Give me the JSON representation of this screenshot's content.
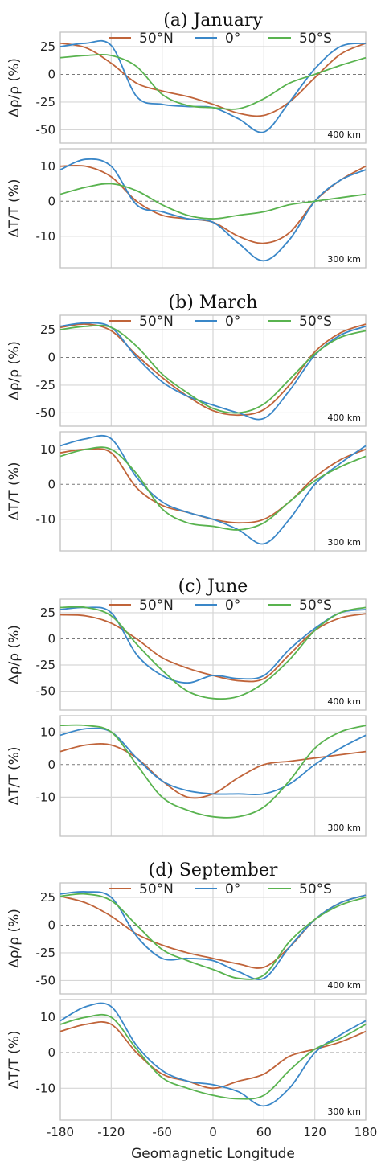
{
  "xlabel": "Geomagnetic Longitude",
  "x_ticks": [
    "-180",
    "-120",
    "-60",
    "0",
    "60",
    "120",
    "180"
  ],
  "colors": {
    "50N": "#c0643a",
    "0": "#3a87c8",
    "50S": "#59b34f"
  },
  "legend": [
    "50°N",
    "0°",
    "50°S"
  ],
  "chart_data": [
    {
      "type": "line",
      "title": "(a) January",
      "ylabel": "Δρ/ρ (%)",
      "annotation": "400 km",
      "xlim": [
        -180,
        180
      ],
      "ylim": [
        -62,
        38
      ],
      "yticks": [
        "25",
        "0",
        "-25",
        "-50"
      ],
      "ytick_values": [
        25,
        0,
        -25,
        -50
      ],
      "x": [
        -180,
        -150,
        -120,
        -90,
        -60,
        -30,
        0,
        30,
        60,
        90,
        120,
        150,
        180
      ],
      "series": [
        {
          "name": "50°N",
          "color": "#c0643a",
          "values": [
            28,
            24,
            10,
            -8,
            -15,
            -20,
            -27,
            -35,
            -37,
            -25,
            -3,
            18,
            28
          ]
        },
        {
          "name": "0°",
          "color": "#3a87c8",
          "values": [
            25,
            28,
            26,
            -20,
            -27,
            -29,
            -30,
            -40,
            -52,
            -25,
            5,
            25,
            28
          ]
        },
        {
          "name": "50°S",
          "color": "#59b34f",
          "values": [
            15,
            17,
            17,
            7,
            -18,
            -28,
            -30,
            -31,
            -22,
            -8,
            0,
            8,
            15
          ]
        }
      ]
    },
    {
      "type": "line",
      "title": "",
      "ylabel": "ΔT/T (%)",
      "annotation": "300 km",
      "xlim": [
        -180,
        180
      ],
      "ylim": [
        -19,
        15
      ],
      "yticks": [
        "10",
        "0",
        "-10"
      ],
      "ytick_values": [
        10,
        0,
        -10
      ],
      "x": [
        -180,
        -150,
        -120,
        -90,
        -60,
        -30,
        0,
        30,
        60,
        90,
        120,
        150,
        180
      ],
      "series": [
        {
          "name": "50°N",
          "color": "#c0643a",
          "values": [
            10,
            10,
            7,
            0,
            -4,
            -5,
            -6,
            -10,
            -12,
            -9,
            0,
            6,
            10
          ]
        },
        {
          "name": "0°",
          "color": "#3a87c8",
          "values": [
            9,
            12,
            10,
            -1,
            -3,
            -5,
            -6,
            -12,
            -17,
            -11,
            0,
            6,
            9
          ]
        },
        {
          "name": "50°S",
          "color": "#59b34f",
          "values": [
            2,
            4,
            5,
            3,
            -1,
            -4,
            -5,
            -4,
            -3,
            -1,
            0,
            1,
            2
          ]
        }
      ]
    },
    {
      "type": "line",
      "title": "(b) March",
      "ylabel": "Δρ/ρ (%)",
      "annotation": "400 km",
      "xlim": [
        -180,
        180
      ],
      "ylim": [
        -62,
        38
      ],
      "yticks": [
        "25",
        "0",
        "-25",
        "-50"
      ],
      "ytick_values": [
        25,
        0,
        -25,
        -50
      ],
      "x": [
        -180,
        -150,
        -120,
        -90,
        -60,
        -30,
        0,
        30,
        60,
        90,
        120,
        150,
        180
      ],
      "series": [
        {
          "name": "50°N",
          "color": "#c0643a",
          "values": [
            27,
            30,
            24,
            2,
            -18,
            -35,
            -48,
            -52,
            -47,
            -25,
            5,
            22,
            30
          ]
        },
        {
          "name": "0°",
          "color": "#3a87c8",
          "values": [
            28,
            31,
            27,
            0,
            -22,
            -35,
            -43,
            -50,
            -55,
            -30,
            2,
            20,
            28
          ]
        },
        {
          "name": "50°S",
          "color": "#59b34f",
          "values": [
            25,
            28,
            27,
            10,
            -15,
            -32,
            -46,
            -50,
            -42,
            -20,
            3,
            18,
            24
          ]
        }
      ]
    },
    {
      "type": "line",
      "title": "",
      "ylabel": "ΔT/T (%)",
      "annotation": "300 km",
      "xlim": [
        -180,
        180
      ],
      "ylim": [
        -19,
        15
      ],
      "yticks": [
        "10",
        "0",
        "-10"
      ],
      "ytick_values": [
        10,
        0,
        -10
      ],
      "x": [
        -180,
        -150,
        -120,
        -90,
        -60,
        -30,
        0,
        30,
        60,
        90,
        120,
        150,
        180
      ],
      "series": [
        {
          "name": "50°N",
          "color": "#c0643a",
          "values": [
            9,
            10,
            9,
            -1,
            -6,
            -8,
            -10,
            -11,
            -10,
            -5,
            2,
            7,
            10
          ]
        },
        {
          "name": "0°",
          "color": "#3a87c8",
          "values": [
            11,
            13,
            13,
            2,
            -5,
            -8,
            -10,
            -13,
            -17,
            -10,
            0,
            6,
            11
          ]
        },
        {
          "name": "50°S",
          "color": "#59b34f",
          "values": [
            8,
            10,
            10,
            3,
            -7,
            -11,
            -12,
            -13,
            -11,
            -5,
            1,
            5,
            8
          ]
        }
      ]
    },
    {
      "type": "line",
      "title": "(c) June",
      "ylabel": "Δρ/ρ (%)",
      "annotation": "400 km",
      "xlim": [
        -180,
        180
      ],
      "ylim": [
        -68,
        38
      ],
      "yticks": [
        "25",
        "0",
        "-25",
        "-50"
      ],
      "ytick_values": [
        25,
        0,
        -25,
        -50
      ],
      "x": [
        -180,
        -150,
        -120,
        -90,
        -60,
        -30,
        0,
        30,
        60,
        90,
        120,
        150,
        180
      ],
      "series": [
        {
          "name": "50°N",
          "color": "#c0643a",
          "values": [
            23,
            22,
            15,
            0,
            -18,
            -28,
            -35,
            -40,
            -38,
            -15,
            8,
            20,
            24
          ]
        },
        {
          "name": "0°",
          "color": "#3a87c8",
          "values": [
            28,
            30,
            25,
            -15,
            -35,
            -42,
            -35,
            -38,
            -35,
            -10,
            10,
            25,
            28
          ]
        },
        {
          "name": "50°S",
          "color": "#59b34f",
          "values": [
            30,
            30,
            22,
            -5,
            -30,
            -50,
            -57,
            -55,
            -42,
            -20,
            8,
            25,
            30
          ]
        }
      ]
    },
    {
      "type": "line",
      "title": "",
      "ylabel": "ΔT/T (%)",
      "annotation": "300 km",
      "xlim": [
        -180,
        180
      ],
      "ylim": [
        -22,
        15
      ],
      "yticks": [
        "10",
        "0",
        "-10"
      ],
      "ytick_values": [
        10,
        0,
        -10
      ],
      "x": [
        -180,
        -150,
        -120,
        -90,
        -60,
        -30,
        0,
        30,
        60,
        90,
        120,
        150,
        180
      ],
      "series": [
        {
          "name": "50°N",
          "color": "#c0643a",
          "values": [
            4,
            6,
            6,
            2,
            -5,
            -10,
            -9,
            -4,
            0,
            1,
            2,
            3,
            4
          ]
        },
        {
          "name": "0°",
          "color": "#3a87c8",
          "values": [
            9,
            11,
            10,
            2,
            -5,
            -8,
            -9,
            -9,
            -9,
            -6,
            0,
            5,
            9
          ]
        },
        {
          "name": "50°S",
          "color": "#59b34f",
          "values": [
            12,
            12,
            10,
            0,
            -10,
            -14,
            -16,
            -16,
            -13,
            -5,
            5,
            10,
            12
          ]
        }
      ]
    },
    {
      "type": "line",
      "title": "(d) September",
      "ylabel": "Δρ/ρ (%)",
      "annotation": "400 km",
      "xlim": [
        -180,
        180
      ],
      "ylim": [
        -62,
        38
      ],
      "yticks": [
        "25",
        "0",
        "-25",
        "-50"
      ],
      "ytick_values": [
        25,
        0,
        -25,
        -50
      ],
      "x": [
        -180,
        -150,
        -120,
        -90,
        -60,
        -30,
        0,
        30,
        60,
        90,
        120,
        150,
        180
      ],
      "series": [
        {
          "name": "50°N",
          "color": "#c0643a",
          "values": [
            26,
            20,
            8,
            -8,
            -18,
            -25,
            -30,
            -35,
            -38,
            -20,
            5,
            20,
            27
          ]
        },
        {
          "name": "0°",
          "color": "#3a87c8",
          "values": [
            28,
            30,
            25,
            -10,
            -30,
            -30,
            -32,
            -42,
            -48,
            -20,
            5,
            20,
            27
          ]
        },
        {
          "name": "50°S",
          "color": "#59b34f",
          "values": [
            26,
            28,
            22,
            0,
            -22,
            -32,
            -40,
            -48,
            -45,
            -15,
            5,
            18,
            25
          ]
        }
      ]
    },
    {
      "type": "line",
      "title": "",
      "ylabel": "ΔT/T (%)",
      "annotation": "300 km",
      "xlim": [
        -180,
        180
      ],
      "ylim": [
        -19,
        15
      ],
      "yticks": [
        "10",
        "0",
        "-10"
      ],
      "ytick_values": [
        10,
        0,
        -10
      ],
      "x": [
        -180,
        -150,
        -120,
        -90,
        -60,
        -30,
        0,
        30,
        60,
        90,
        120,
        150,
        180
      ],
      "series": [
        {
          "name": "50°N",
          "color": "#c0643a",
          "values": [
            6,
            8,
            8,
            0,
            -6,
            -8,
            -10,
            -8,
            -6,
            -1,
            1,
            3,
            6
          ]
        },
        {
          "name": "0°",
          "color": "#3a87c8",
          "values": [
            9,
            13,
            13,
            2,
            -5,
            -8,
            -9,
            -11,
            -15,
            -10,
            0,
            5,
            9
          ]
        },
        {
          "name": "50°S",
          "color": "#59b34f",
          "values": [
            8,
            10,
            10,
            1,
            -7,
            -10,
            -12,
            -13,
            -12,
            -5,
            1,
            4,
            8
          ]
        }
      ]
    }
  ]
}
